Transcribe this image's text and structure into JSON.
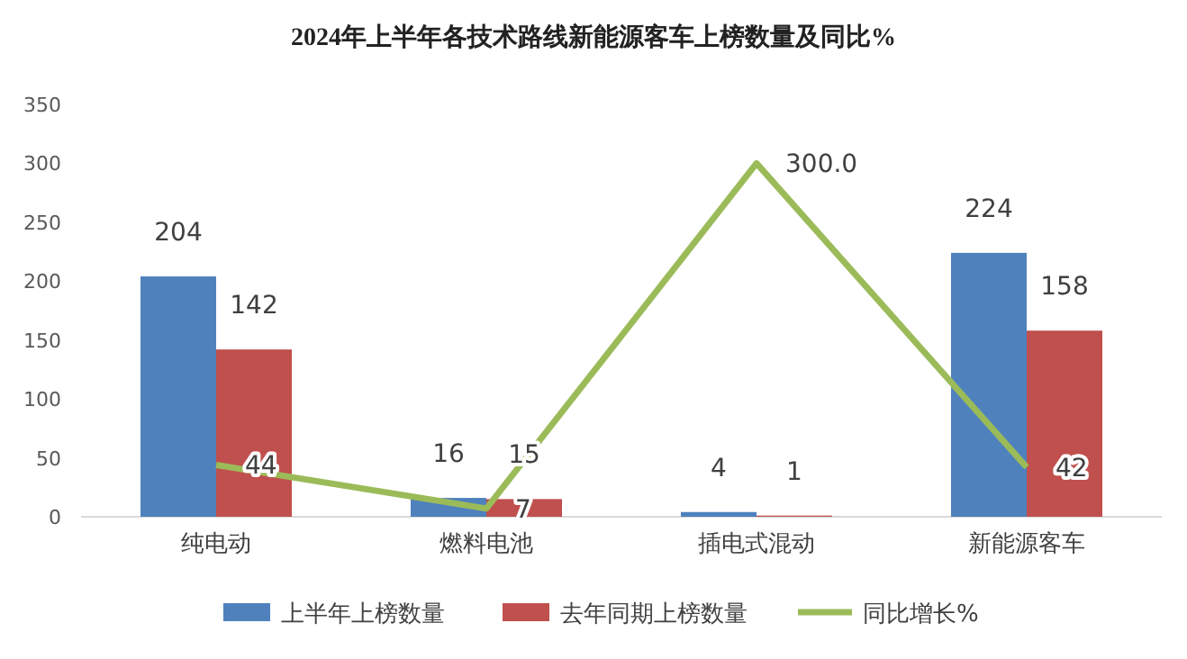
{
  "chart_data": {
    "type": "bar",
    "title": "2024年上半年各技术路线新能源客车上榜数量及同比%",
    "categories": [
      "纯电动",
      "燃料电池",
      "插电式混动",
      "新能源客车"
    ],
    "series": [
      {
        "name": "上半年上榜数量",
        "color": "#4f81bd",
        "values": [
          204,
          16,
          4,
          224
        ],
        "value_labels": [
          "204",
          "16",
          "4",
          "224"
        ]
      },
      {
        "name": "去年同期上榜数量",
        "color": "#c0504d",
        "values": [
          142,
          15,
          1,
          158
        ],
        "value_labels": [
          "142",
          "15",
          "1",
          "158"
        ]
      },
      {
        "name": "同比增长%",
        "type": "line",
        "color": "#9bbb59",
        "values": [
          44,
          7,
          300,
          42
        ],
        "value_labels": [
          "44",
          "7",
          "300.0",
          "42"
        ]
      }
    ],
    "ylim": [
      0,
      350
    ],
    "yticks": [
      0,
      50,
      100,
      150,
      200,
      250,
      300,
      350
    ],
    "grid": false,
    "legend": "bottom",
    "marker": "none"
  }
}
